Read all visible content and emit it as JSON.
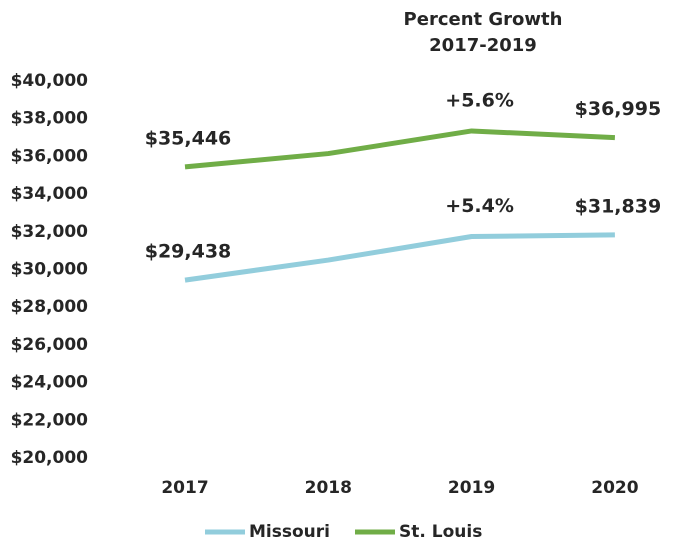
{
  "chart_data": {
    "type": "line",
    "title": "Percent Growth",
    "subtitle": "2017-2019",
    "categories": [
      "2017",
      "2018",
      "2019",
      "2020"
    ],
    "series": [
      {
        "name": "Missouri",
        "color": "#92cddc",
        "values": [
          29438,
          30500,
          31750,
          31839
        ],
        "value_labels": [
          "$29,438",
          null,
          null,
          "$31,839"
        ]
      },
      {
        "name": "St. Louis",
        "color": "#70ad47",
        "values": [
          35446,
          36150,
          37350,
          36995
        ],
        "value_labels": [
          "$35,446",
          null,
          null,
          "$36,995"
        ]
      }
    ],
    "annotations": [
      "+5.4%",
      "+5.6%"
    ],
    "ylim": [
      20000,
      40000
    ],
    "yticks": [
      {
        "value": 20000,
        "label": "$20,000"
      },
      {
        "value": 22000,
        "label": "$22,000"
      },
      {
        "value": 24000,
        "label": "$24,000"
      },
      {
        "value": 26000,
        "label": "$26,000"
      },
      {
        "value": 28000,
        "label": "$28,000"
      },
      {
        "value": 30000,
        "label": "$30,000"
      },
      {
        "value": 32000,
        "label": "$32,000"
      },
      {
        "value": 34000,
        "label": "$34,000"
      },
      {
        "value": 36000,
        "label": "$36,000"
      },
      {
        "value": 38000,
        "label": "$38,000"
      },
      {
        "value": 40000,
        "label": "$40,000"
      }
    ],
    "grid": false,
    "legend": "bottom"
  }
}
